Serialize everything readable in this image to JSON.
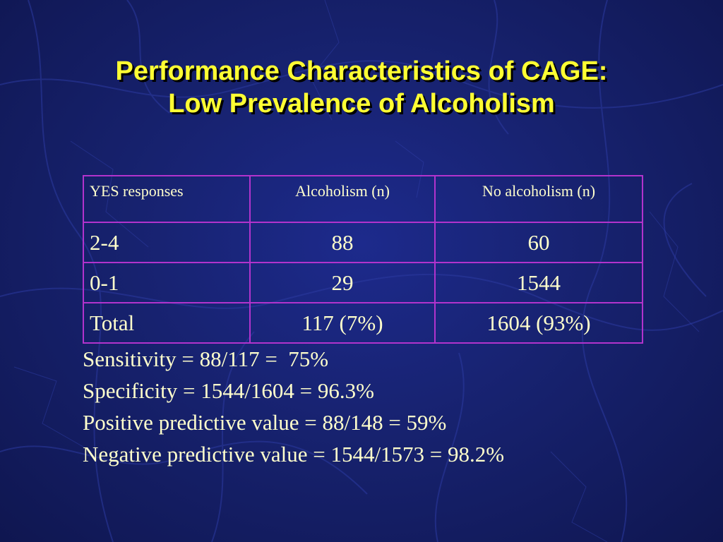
{
  "slide": {
    "title_line1": "Performance Characteristics of CAGE:",
    "title_line2": "Low Prevalence of Alcoholism"
  },
  "colors": {
    "title": "#ffff33",
    "body_text": "#ffffcc",
    "table_border": "#b233cc",
    "background": "#17226f"
  },
  "table": {
    "headers": [
      "YES responses",
      "Alcoholism (n)",
      "No alcoholism (n)"
    ],
    "rows": [
      [
        "2-4",
        "88",
        "60"
      ],
      [
        "0-1",
        "29",
        "1544"
      ],
      [
        "Total",
        "117  (7%)",
        "1604  (93%)"
      ]
    ]
  },
  "stats": [
    "Sensitivity = 88/117 =  75%",
    "Specificity = 1544/1604 = 96.3%",
    "Positive predictive value = 88/148 = 59%",
    "Negative predictive value = 1544/1573 = 98.2%"
  ]
}
